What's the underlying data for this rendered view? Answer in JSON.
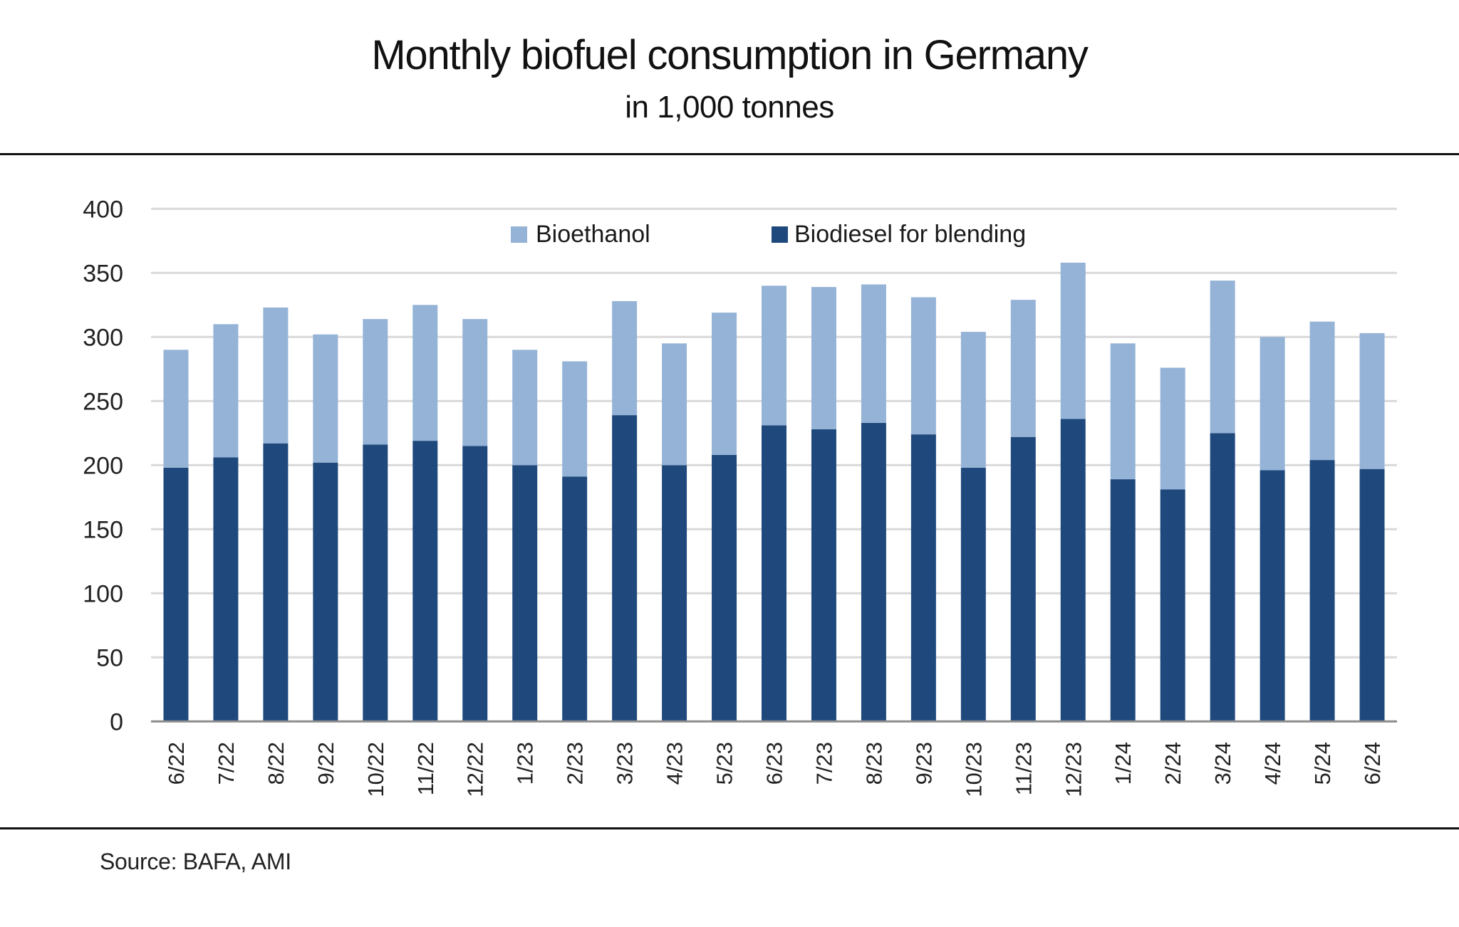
{
  "header": {
    "title": "Monthly biofuel consumption in Germany",
    "subtitle": "in 1,000 tonnes"
  },
  "footer": {
    "source": "Source: BAFA, AMI"
  },
  "colors": {
    "bioethanol": "#95B3D7",
    "biodiesel": "#1F497D",
    "gridline": "#d9d9d9",
    "axis": "#8c8c8c"
  },
  "chart_data": {
    "type": "bar",
    "stacked": true,
    "title": "Monthly biofuel consumption in Germany",
    "subtitle": "in 1,000 tonnes",
    "xlabel": "",
    "ylabel": "",
    "ylim": [
      0,
      400
    ],
    "yticks": [
      0,
      50,
      100,
      150,
      200,
      250,
      300,
      350,
      400
    ],
    "grid": true,
    "legend_position": "top-center",
    "categories": [
      "6/22",
      "7/22",
      "8/22",
      "9/22",
      "10/22",
      "11/22",
      "12/22",
      "1/23",
      "2/23",
      "3/23",
      "4/23",
      "5/23",
      "6/23",
      "7/23",
      "8/23",
      "9/23",
      "10/23",
      "11/23",
      "12/23",
      "1/24",
      "2/24",
      "3/24",
      "4/24",
      "5/24",
      "6/24"
    ],
    "series": [
      {
        "name": "Biodiesel for blending",
        "values": [
          198,
          206,
          217,
          202,
          216,
          219,
          215,
          200,
          191,
          239,
          200,
          208,
          231,
          228,
          233,
          224,
          198,
          222,
          236,
          189,
          181,
          225,
          196,
          204,
          197
        ]
      },
      {
        "name": "Bioethanol",
        "values": [
          92,
          104,
          106,
          100,
          98,
          106,
          99,
          90,
          90,
          89,
          95,
          111,
          109,
          111,
          108,
          107,
          106,
          107,
          122,
          106,
          95,
          119,
          104,
          108,
          106
        ]
      }
    ],
    "legend": [
      "Bioethanol",
      "Biodiesel for blending"
    ],
    "source": "Source: BAFA, AMI"
  }
}
